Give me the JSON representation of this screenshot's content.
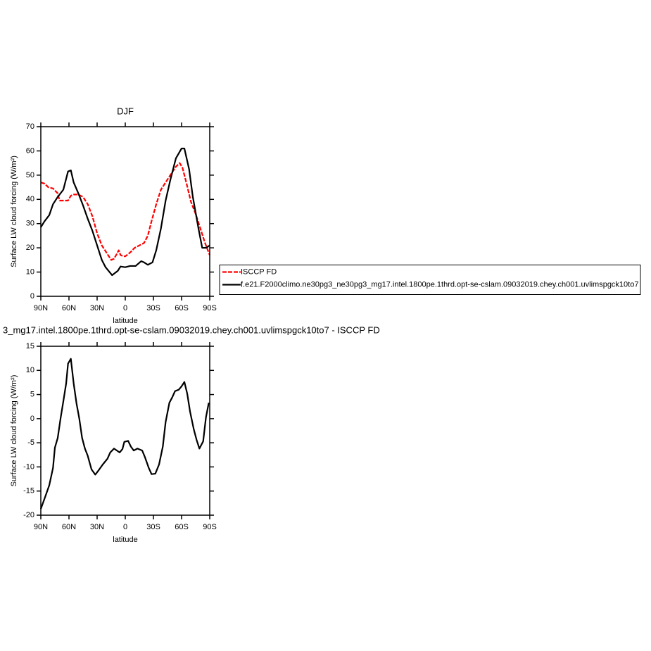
{
  "chart_data": [
    {
      "type": "line",
      "title": "DJF",
      "xlabel": "latitude",
      "ylabel": "Surface LW cloud forcing (W/m²)",
      "xlim": [
        90,
        -90
      ],
      "xticks": [
        {
          "value": 90,
          "label": "90N"
        },
        {
          "value": 60,
          "label": "60N"
        },
        {
          "value": 30,
          "label": "30N"
        },
        0,
        {
          "value": -30,
          "label": "30S"
        },
        {
          "value": -60,
          "label": "60S"
        },
        {
          "value": -90,
          "label": "90S"
        }
      ],
      "ylim": [
        0,
        70
      ],
      "yticks": [
        0,
        10,
        20,
        30,
        40,
        50,
        60,
        70
      ],
      "legend": "right",
      "series": [
        {
          "name": "ISCCP FD",
          "color": "#ff0000",
          "dashed": true,
          "x": [
            90,
            86,
            82,
            77,
            72,
            70,
            65,
            61,
            58,
            55,
            50,
            45,
            40,
            35,
            30,
            25,
            20,
            15,
            12,
            9,
            7,
            5,
            2,
            0,
            -5,
            -10,
            -15,
            -20,
            -24,
            -28,
            -33,
            -38,
            -43,
            -48,
            -54,
            -58,
            -61,
            -65,
            -70,
            -75,
            -80,
            -85,
            -90
          ],
          "values": [
            47,
            46.5,
            45,
            44.5,
            42.5,
            39.5,
            39.5,
            39.5,
            41.5,
            42,
            42,
            41,
            38,
            33,
            26,
            21,
            18,
            15,
            15.5,
            17.5,
            19,
            17,
            16.5,
            16.5,
            18,
            20,
            21,
            22,
            25,
            31,
            38,
            44,
            47,
            50,
            53.5,
            55,
            53,
            47,
            39,
            34,
            28,
            22,
            17
          ]
        },
        {
          "name": "f.e21.F2000climo.ne30pg3_ne30pg3_mg17.intel.1800pe.1thrd.opt-se-cslam.09032019.chey.ch001.uvlimspgck10to7",
          "color": "#000000",
          "dashed": false,
          "x": [
            90,
            86,
            81,
            77,
            72,
            66,
            61,
            58,
            55,
            50,
            45,
            40,
            35,
            30,
            25,
            21,
            14,
            8,
            5,
            0,
            -5,
            -11,
            -17,
            -20,
            -24,
            -29,
            -33,
            -38,
            -43,
            -48,
            -54,
            -60,
            -63,
            -68,
            -72,
            -78,
            -82,
            -86,
            -90
          ],
          "values": [
            28.5,
            31,
            33.5,
            38,
            41,
            44,
            51.5,
            52,
            47,
            42.5,
            37.5,
            32,
            27,
            21,
            15,
            12,
            8.7,
            10.5,
            12.3,
            12,
            12.5,
            12.5,
            14.5,
            14,
            13,
            14,
            19,
            28,
            39.5,
            48,
            57,
            61,
            61,
            52.5,
            41,
            28,
            20,
            20,
            21
          ]
        }
      ]
    },
    {
      "type": "line",
      "title": "3_mg17.intel.1800pe.1thrd.opt-se-cslam.09032019.chey.ch001.uvlimspgck10to7 - ISCCP FD",
      "xlabel": "latitude",
      "ylabel": "Surface LW cloud forcing (W/m²)",
      "xlim": [
        90,
        -90
      ],
      "xticks": [
        {
          "value": 90,
          "label": "90N"
        },
        {
          "value": 60,
          "label": "60N"
        },
        {
          "value": 30,
          "label": "30N"
        },
        0,
        {
          "value": -30,
          "label": "30S"
        },
        {
          "value": -60,
          "label": "60S"
        },
        {
          "value": -90,
          "label": "90S"
        }
      ],
      "ylim": [
        -20,
        15
      ],
      "yticks": [
        -20,
        -15,
        -10,
        -5,
        0,
        5,
        10,
        15
      ],
      "series": [
        {
          "color": "#000000",
          "dashed": false,
          "x": [
            90,
            85,
            81,
            77,
            75,
            72,
            69,
            66,
            63,
            61,
            58,
            55,
            52,
            49,
            46,
            43,
            40,
            36,
            32,
            28,
            24,
            19,
            16,
            12,
            9,
            6,
            3,
            1,
            -3,
            -6,
            -9,
            -13,
            -18,
            -21,
            -25,
            -28,
            -32,
            -36,
            -40,
            -43,
            -47,
            -50,
            -53,
            -57,
            -60,
            -63,
            -66,
            -69,
            -73,
            -76,
            -79,
            -83,
            -86,
            -89
          ],
          "values": [
            -18.7,
            -16,
            -13.8,
            -10.2,
            -6,
            -4,
            0,
            3.6,
            7.3,
            11.4,
            12.4,
            7.3,
            3.2,
            0,
            -4,
            -6.2,
            -7.7,
            -10.5,
            -11.6,
            -10.6,
            -9.5,
            -8.3,
            -7,
            -6.2,
            -6.6,
            -7,
            -6.3,
            -4.8,
            -4.6,
            -5.8,
            -6.6,
            -6.2,
            -6.6,
            -8,
            -10.2,
            -11.5,
            -11.4,
            -9.5,
            -5.8,
            -0.7,
            3.3,
            4.4,
            5.7,
            6,
            6.7,
            7.6,
            5.2,
            1.5,
            -2.2,
            -4.4,
            -6.2,
            -4.7,
            0.3,
            3.3
          ]
        }
      ]
    }
  ]
}
